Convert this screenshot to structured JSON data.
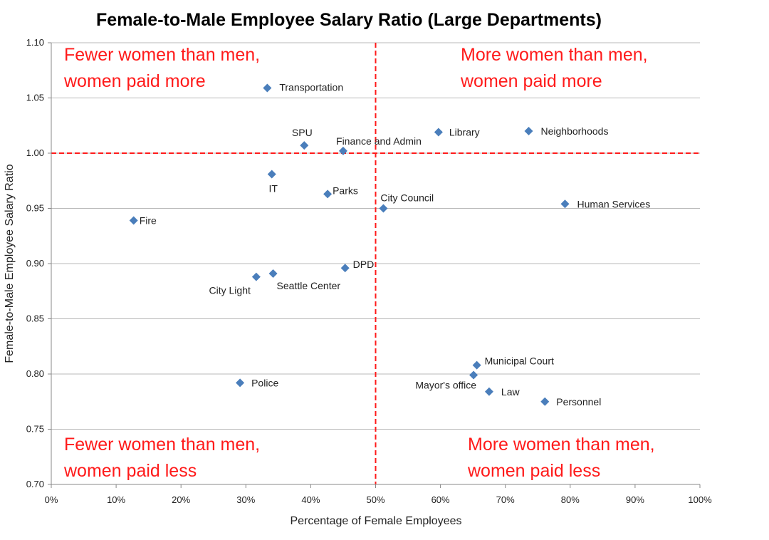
{
  "chart_data": {
    "type": "scatter",
    "title": "Female-to-Male Employee Salary Ratio (Large Departments)",
    "xlabel": "Percentage of Female Employees",
    "ylabel": "Female-to-Male Employee Salary Ratio",
    "xlim": [
      0,
      100
    ],
    "ylim": [
      0.7,
      1.1
    ],
    "x_ticks": [
      "0%",
      "10%",
      "20%",
      "30%",
      "40%",
      "50%",
      "60%",
      "70%",
      "80%",
      "90%",
      "100%"
    ],
    "y_ticks": [
      "0.70",
      "0.75",
      "0.80",
      "0.85",
      "0.90",
      "0.95",
      "1.00",
      "1.05",
      "1.10"
    ],
    "grid": "horizontal",
    "reference_lines": {
      "x": 50,
      "y": 1.0
    },
    "marker_color": "#4a7ebb",
    "reference_color": "#ff1a1a",
    "points": [
      {
        "label": "Transportation",
        "x": 33.3,
        "y": 1.059
      },
      {
        "label": "SPU",
        "x": 39.0,
        "y": 1.007
      },
      {
        "label": "Finance and Admin",
        "x": 45.0,
        "y": 1.002
      },
      {
        "label": "Library",
        "x": 59.7,
        "y": 1.019
      },
      {
        "label": "Neighborhoods",
        "x": 73.6,
        "y": 1.02
      },
      {
        "label": "IT",
        "x": 34.0,
        "y": 0.981
      },
      {
        "label": "Parks",
        "x": 42.6,
        "y": 0.963
      },
      {
        "label": "City Council",
        "x": 51.2,
        "y": 0.95
      },
      {
        "label": "Human Services",
        "x": 79.2,
        "y": 0.954
      },
      {
        "label": "Fire",
        "x": 12.7,
        "y": 0.939
      },
      {
        "label": "DPD",
        "x": 45.3,
        "y": 0.896
      },
      {
        "label": "City Light",
        "x": 31.6,
        "y": 0.888
      },
      {
        "label": "Seattle Center",
        "x": 34.2,
        "y": 0.891
      },
      {
        "label": "Municipal Court",
        "x": 65.6,
        "y": 0.808
      },
      {
        "label": "Mayor's office",
        "x": 65.1,
        "y": 0.799
      },
      {
        "label": "Law",
        "x": 67.5,
        "y": 0.784
      },
      {
        "label": "Personnel",
        "x": 76.1,
        "y": 0.775
      },
      {
        "label": "Police",
        "x": 29.1,
        "y": 0.792
      }
    ],
    "annotations": [
      {
        "lines": [
          "Fewer women than men,",
          "women paid more"
        ],
        "quadrant": "top-left"
      },
      {
        "lines": [
          "More women than men,",
          "women paid more"
        ],
        "quadrant": "top-right"
      },
      {
        "lines": [
          "Fewer women than men,",
          "women paid less"
        ],
        "quadrant": "bottom-left"
      },
      {
        "lines": [
          "More women than men,",
          "women paid less"
        ],
        "quadrant": "bottom-right"
      }
    ]
  }
}
